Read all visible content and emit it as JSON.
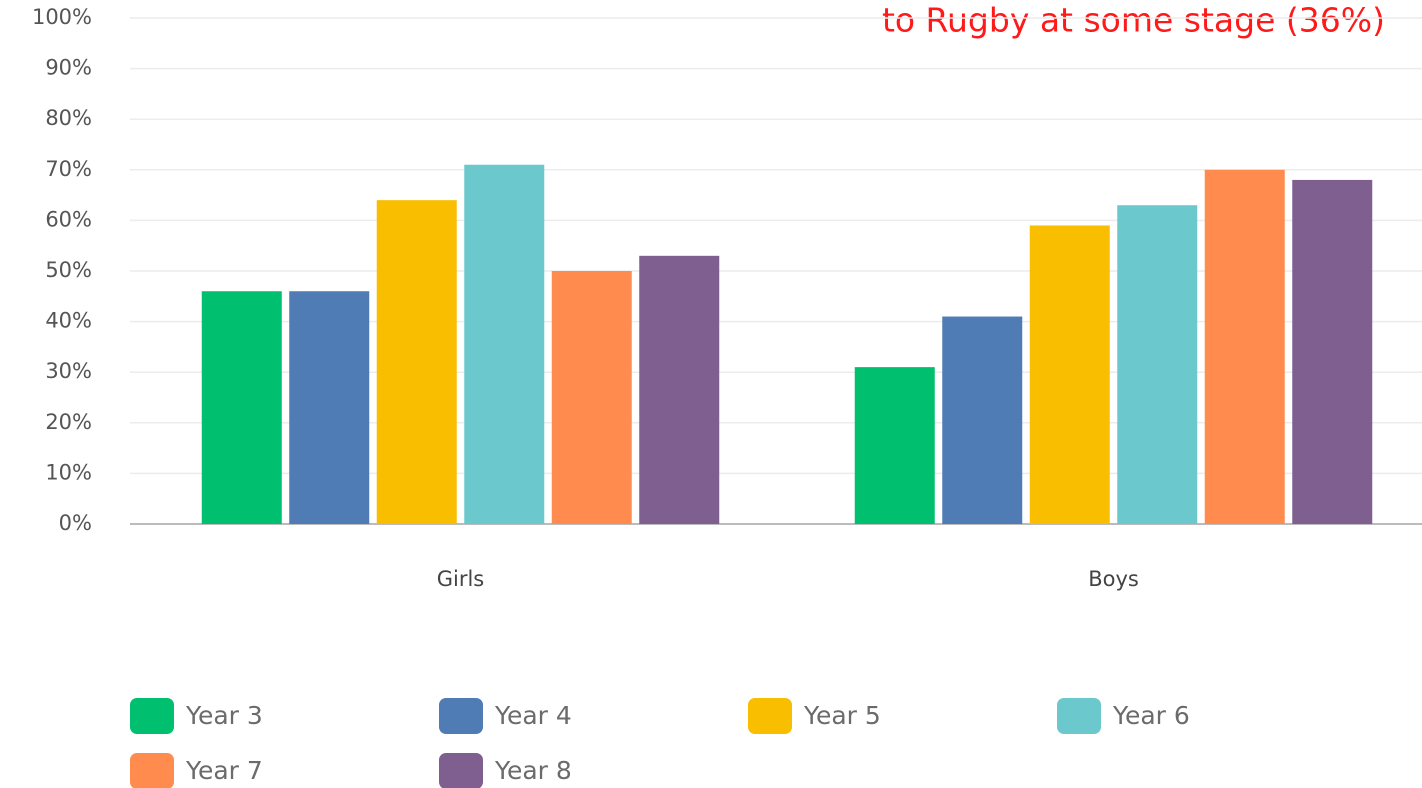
{
  "chart_data": {
    "type": "bar",
    "annotation": "to Rugby at some stage (36%)",
    "categories": [
      "Girls",
      "Boys"
    ],
    "series": [
      {
        "name": "Year 3",
        "color": "#00bf6f",
        "values": [
          46,
          31
        ]
      },
      {
        "name": "Year 4",
        "color": "#507cb6",
        "values": [
          46,
          41
        ]
      },
      {
        "name": "Year 5",
        "color": "#f9be00",
        "values": [
          64,
          59
        ]
      },
      {
        "name": "Year 6",
        "color": "#6bc8cd",
        "values": [
          71,
          63
        ]
      },
      {
        "name": "Year 7",
        "color": "#ff8b4f",
        "values": [
          50,
          70
        ]
      },
      {
        "name": "Year 8",
        "color": "#7f5f90",
        "values": [
          53,
          68
        ]
      }
    ],
    "ylim": [
      0,
      100
    ],
    "yticks": [
      {
        "value": 0,
        "label": "0%"
      },
      {
        "value": 10,
        "label": "10%"
      },
      {
        "value": 20,
        "label": "20%"
      },
      {
        "value": 30,
        "label": "30%"
      },
      {
        "value": 40,
        "label": "40%"
      },
      {
        "value": 50,
        "label": "50%"
      },
      {
        "value": 60,
        "label": "60%"
      },
      {
        "value": 70,
        "label": "70%"
      },
      {
        "value": 80,
        "label": "80%"
      },
      {
        "value": 90,
        "label": "90%"
      },
      {
        "value": 100,
        "label": "100%"
      }
    ],
    "grid": true,
    "legend": "bottom"
  }
}
